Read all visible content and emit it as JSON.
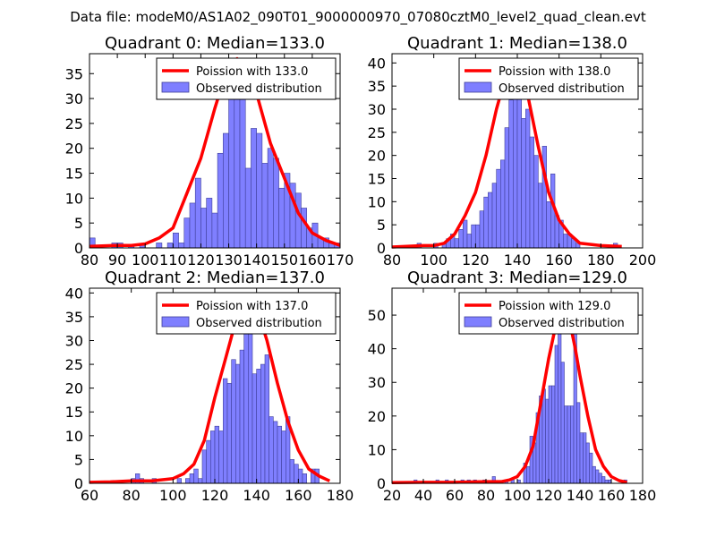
{
  "figure_title": "Data file: modeM0/AS1A02_090T01_9000000970_07080cztM0_level2_quad_clean.evt",
  "chart_data": [
    {
      "type": "bar",
      "title": "Quadrant 0: Median=133.0",
      "median": 133.0,
      "xlim": [
        80,
        170
      ],
      "ylim": [
        0,
        39
      ],
      "xticks": [
        80,
        90,
        100,
        110,
        120,
        130,
        140,
        150,
        160,
        170
      ],
      "yticks": [
        0,
        5,
        10,
        15,
        20,
        25,
        30,
        35
      ],
      "legend": {
        "position": "top-right",
        "curve_label": "Poission with 133.0",
        "hist_label": "Observed distribution"
      },
      "bins": [
        [
          80,
          82,
          2
        ],
        [
          88,
          90,
          1
        ],
        [
          90,
          92,
          1
        ],
        [
          94,
          96,
          0.5
        ],
        [
          98,
          100,
          0.5
        ],
        [
          104,
          106,
          1
        ],
        [
          108,
          110,
          1
        ],
        [
          110,
          112,
          3
        ],
        [
          112,
          114,
          1
        ],
        [
          114,
          116,
          6
        ],
        [
          116,
          118,
          9
        ],
        [
          118,
          120,
          14
        ],
        [
          120,
          122,
          8
        ],
        [
          122,
          124,
          10
        ],
        [
          124,
          126,
          7
        ],
        [
          126,
          128,
          19
        ],
        [
          128,
          130,
          23
        ],
        [
          130,
          132,
          31
        ],
        [
          132,
          134,
          30
        ],
        [
          134,
          136,
          35
        ],
        [
          136,
          138,
          16
        ],
        [
          138,
          140,
          24
        ],
        [
          140,
          142,
          23
        ],
        [
          142,
          144,
          17
        ],
        [
          144,
          146,
          20
        ],
        [
          146,
          148,
          18
        ],
        [
          148,
          150,
          12
        ],
        [
          150,
          152,
          15
        ],
        [
          152,
          154,
          13
        ],
        [
          154,
          156,
          11
        ],
        [
          156,
          158,
          8
        ],
        [
          158,
          160,
          4
        ],
        [
          160,
          162,
          5
        ],
        [
          162,
          164,
          2
        ],
        [
          164,
          166,
          2
        ],
        [
          166,
          168,
          1
        ],
        [
          168,
          170,
          1
        ]
      ],
      "curve": [
        [
          80,
          0.3
        ],
        [
          90,
          0.5
        ],
        [
          95,
          0.5
        ],
        [
          100,
          0.8
        ],
        [
          105,
          2
        ],
        [
          110,
          4
        ],
        [
          115,
          11
        ],
        [
          120,
          18
        ],
        [
          125,
          28
        ],
        [
          130,
          37
        ],
        [
          133,
          38
        ],
        [
          137,
          36
        ],
        [
          140,
          31
        ],
        [
          145,
          21
        ],
        [
          150,
          14
        ],
        [
          155,
          7
        ],
        [
          160,
          3
        ],
        [
          165,
          1.5
        ],
        [
          170,
          0.5
        ]
      ]
    },
    {
      "type": "bar",
      "title": "Quadrant 1: Median=138.0",
      "median": 138.0,
      "xlim": [
        80,
        200
      ],
      "ylim": [
        0,
        42
      ],
      "xticks": [
        80,
        100,
        120,
        140,
        160,
        180,
        200
      ],
      "yticks": [
        0,
        5,
        10,
        15,
        20,
        25,
        30,
        35,
        40
      ],
      "legend": {
        "position": "top-right",
        "curve_label": "Poission with 138.0",
        "hist_label": "Observed distribution"
      },
      "bins": [
        [
          92,
          94,
          1
        ],
        [
          100,
          102,
          1
        ],
        [
          104,
          106,
          1
        ],
        [
          106,
          108,
          2
        ],
        [
          108,
          110,
          3
        ],
        [
          110,
          112,
          2
        ],
        [
          112,
          114,
          4
        ],
        [
          114,
          116,
          6
        ],
        [
          116,
          118,
          3
        ],
        [
          118,
          120,
          5
        ],
        [
          120,
          122,
          5
        ],
        [
          122,
          124,
          8
        ],
        [
          124,
          126,
          11
        ],
        [
          126,
          128,
          12
        ],
        [
          128,
          130,
          14
        ],
        [
          130,
          132,
          17
        ],
        [
          132,
          134,
          19
        ],
        [
          134,
          136,
          26
        ],
        [
          136,
          138,
          32
        ],
        [
          138,
          140,
          40
        ],
        [
          140,
          142,
          39
        ],
        [
          142,
          144,
          28
        ],
        [
          144,
          146,
          30
        ],
        [
          146,
          148,
          24
        ],
        [
          148,
          150,
          20
        ],
        [
          150,
          152,
          14
        ],
        [
          152,
          154,
          22
        ],
        [
          154,
          156,
          10
        ],
        [
          156,
          158,
          16
        ],
        [
          158,
          160,
          7
        ],
        [
          160,
          162,
          6
        ],
        [
          162,
          164,
          3
        ],
        [
          164,
          166,
          3
        ],
        [
          166,
          168,
          2
        ],
        [
          168,
          170,
          1
        ],
        [
          186,
          188,
          1
        ]
      ],
      "curve": [
        [
          80,
          0.2
        ],
        [
          95,
          0.5
        ],
        [
          100,
          0.5
        ],
        [
          105,
          1
        ],
        [
          110,
          3
        ],
        [
          115,
          7
        ],
        [
          120,
          12
        ],
        [
          125,
          20
        ],
        [
          130,
          30
        ],
        [
          135,
          38
        ],
        [
          138,
          40
        ],
        [
          141,
          38
        ],
        [
          145,
          33
        ],
        [
          150,
          22
        ],
        [
          155,
          12
        ],
        [
          160,
          6
        ],
        [
          165,
          3
        ],
        [
          170,
          1
        ],
        [
          180,
          0.5
        ],
        [
          190,
          0.3
        ]
      ]
    },
    {
      "type": "bar",
      "title": "Quadrant 2: Median=137.0",
      "median": 137.0,
      "xlim": [
        60,
        180
      ],
      "ylim": [
        0,
        41
      ],
      "xticks": [
        60,
        80,
        100,
        120,
        140,
        160,
        180
      ],
      "yticks": [
        0,
        5,
        10,
        15,
        20,
        25,
        30,
        35,
        40
      ],
      "legend": {
        "position": "top-right",
        "curve_label": "Poission with 137.0",
        "hist_label": "Observed distribution"
      },
      "bins": [
        [
          80,
          82,
          1
        ],
        [
          82,
          84,
          2
        ],
        [
          84,
          86,
          1
        ],
        [
          90,
          92,
          1
        ],
        [
          102,
          104,
          1
        ],
        [
          106,
          108,
          1
        ],
        [
          108,
          110,
          2
        ],
        [
          110,
          112,
          3
        ],
        [
          112,
          114,
          1
        ],
        [
          114,
          116,
          7
        ],
        [
          116,
          118,
          9
        ],
        [
          118,
          120,
          11
        ],
        [
          120,
          122,
          12
        ],
        [
          122,
          124,
          11
        ],
        [
          124,
          126,
          22
        ],
        [
          126,
          128,
          21
        ],
        [
          128,
          130,
          26
        ],
        [
          130,
          132,
          25
        ],
        [
          132,
          134,
          28
        ],
        [
          134,
          136,
          38
        ],
        [
          136,
          138,
          36
        ],
        [
          138,
          140,
          23
        ],
        [
          140,
          142,
          24
        ],
        [
          142,
          144,
          25
        ],
        [
          144,
          146,
          27
        ],
        [
          146,
          148,
          14
        ],
        [
          148,
          150,
          13
        ],
        [
          150,
          152,
          12
        ],
        [
          152,
          154,
          11
        ],
        [
          154,
          156,
          14
        ],
        [
          156,
          158,
          5
        ],
        [
          158,
          160,
          4
        ],
        [
          160,
          162,
          3
        ],
        [
          162,
          164,
          2
        ],
        [
          166,
          168,
          3
        ],
        [
          168,
          170,
          3
        ]
      ],
      "curve": [
        [
          60,
          0.2
        ],
        [
          70,
          0.3
        ],
        [
          80,
          0.5
        ],
        [
          90,
          0.5
        ],
        [
          100,
          1
        ],
        [
          105,
          2
        ],
        [
          110,
          4
        ],
        [
          115,
          9
        ],
        [
          120,
          18
        ],
        [
          125,
          26
        ],
        [
          130,
          34
        ],
        [
          134,
          38
        ],
        [
          137,
          39
        ],
        [
          140,
          37
        ],
        [
          145,
          30
        ],
        [
          150,
          21
        ],
        [
          155,
          13
        ],
        [
          160,
          7
        ],
        [
          165,
          3
        ],
        [
          170,
          1.5
        ],
        [
          175,
          0.5
        ]
      ]
    },
    {
      "type": "bar",
      "title": "Quadrant 3: Median=129.0",
      "median": 129.0,
      "xlim": [
        20,
        180
      ],
      "ylim": [
        0,
        58
      ],
      "xticks": [
        20,
        40,
        60,
        80,
        100,
        120,
        140,
        160,
        180
      ],
      "yticks": [
        0,
        10,
        20,
        30,
        40,
        50
      ],
      "legend": {
        "position": "top-right",
        "curve_label": "Poission with 129.0",
        "hist_label": "Observed distribution"
      },
      "bins": [
        [
          34,
          36,
          1
        ],
        [
          48,
          50,
          1
        ],
        [
          54,
          56,
          1
        ],
        [
          64,
          66,
          1
        ],
        [
          68,
          70,
          1
        ],
        [
          72,
          74,
          1
        ],
        [
          78,
          80,
          1
        ],
        [
          84,
          86,
          2
        ],
        [
          92,
          94,
          1
        ],
        [
          96,
          98,
          1
        ],
        [
          100,
          102,
          1
        ],
        [
          104,
          106,
          6
        ],
        [
          106,
          108,
          5
        ],
        [
          108,
          110,
          14
        ],
        [
          110,
          112,
          12
        ],
        [
          112,
          114,
          21
        ],
        [
          114,
          116,
          26
        ],
        [
          116,
          118,
          28
        ],
        [
          118,
          120,
          25
        ],
        [
          120,
          122,
          29
        ],
        [
          122,
          124,
          29
        ],
        [
          124,
          126,
          41
        ],
        [
          126,
          128,
          47
        ],
        [
          128,
          130,
          36
        ],
        [
          130,
          132,
          23
        ],
        [
          132,
          134,
          23
        ],
        [
          134,
          136,
          23
        ],
        [
          136,
          138,
          49
        ],
        [
          138,
          140,
          24
        ],
        [
          140,
          142,
          15
        ],
        [
          142,
          144,
          15
        ],
        [
          144,
          146,
          12
        ],
        [
          146,
          148,
          9
        ],
        [
          148,
          150,
          5
        ],
        [
          150,
          152,
          4
        ],
        [
          152,
          154,
          3
        ],
        [
          154,
          156,
          2
        ],
        [
          156,
          158,
          1
        ],
        [
          158,
          160,
          1
        ],
        [
          168,
          170,
          1
        ]
      ],
      "curve": [
        [
          20,
          0.2
        ],
        [
          40,
          0.3
        ],
        [
          60,
          0.3
        ],
        [
          80,
          0.5
        ],
        [
          90,
          0.5
        ],
        [
          95,
          1
        ],
        [
          100,
          2
        ],
        [
          105,
          5
        ],
        [
          110,
          11
        ],
        [
          115,
          24
        ],
        [
          120,
          37
        ],
        [
          125,
          48
        ],
        [
          129,
          53
        ],
        [
          133,
          49
        ],
        [
          137,
          40
        ],
        [
          140,
          32
        ],
        [
          145,
          20
        ],
        [
          150,
          10
        ],
        [
          155,
          5
        ],
        [
          160,
          2
        ],
        [
          165,
          0.8
        ],
        [
          170,
          0.3
        ]
      ]
    }
  ]
}
